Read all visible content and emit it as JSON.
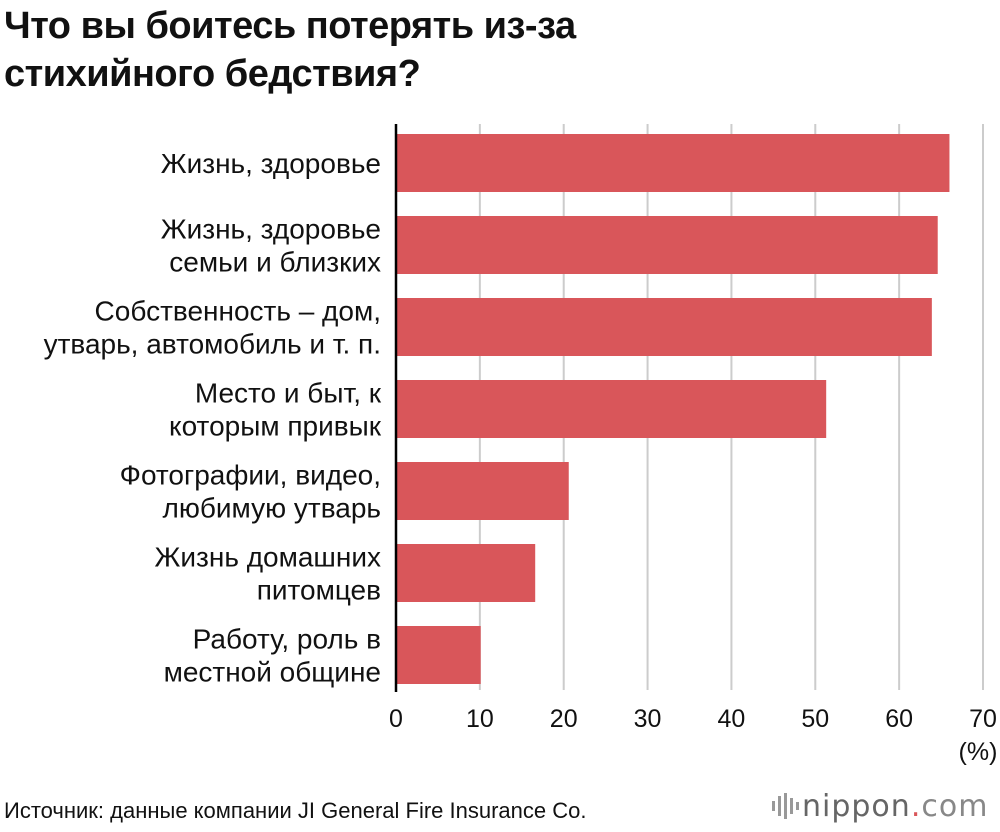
{
  "chart_data": {
    "type": "bar",
    "orientation": "horizontal",
    "title_lines": [
      "Что вы боитесь потерять из-за",
      "стихийного бедствия?"
    ],
    "categories": [
      [
        "Жизнь, здоровье"
      ],
      [
        "Жизнь, здоровье",
        "семьи и близких"
      ],
      [
        "Собственность – дом,",
        "утварь, автомобиль и т. п."
      ],
      [
        "Место и быт, к",
        "которым привык"
      ],
      [
        "Фотографии, видео,",
        "любимую утварь"
      ],
      [
        "Жизнь домашних",
        "питомцев"
      ],
      [
        "Работу, роль в",
        "местной общине"
      ]
    ],
    "values": [
      66,
      64.6,
      63.9,
      51.3,
      20.6,
      16.6,
      10.1
    ],
    "xlim": [
      0,
      70
    ],
    "xticks": [
      "0",
      "10",
      "20",
      "30",
      "40",
      "50",
      "60",
      "70"
    ],
    "xlabel": "(%)",
    "grid": true,
    "bar_color": "#d9565a",
    "grid_color": "#cccccc"
  },
  "footer": {
    "source": "Источник: данные компании JI General Fire Insurance Co.",
    "brand_name": "nippon",
    "brand_dot": ".",
    "brand_suffix": "com"
  }
}
